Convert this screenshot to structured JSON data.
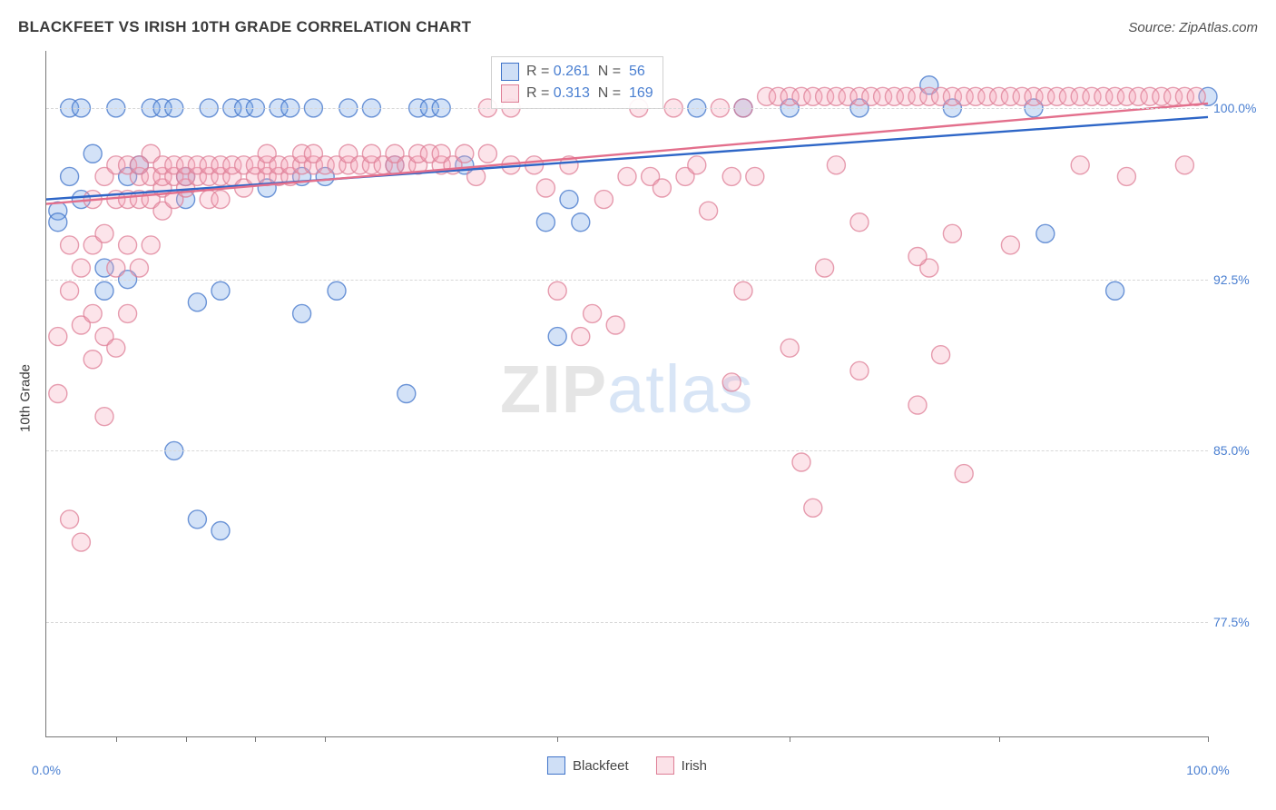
{
  "header": {
    "title": "BLACKFEET VS IRISH 10TH GRADE CORRELATION CHART",
    "source_prefix": "Source: ",
    "source": "ZipAtlas.com"
  },
  "chart": {
    "type": "scatter",
    "y_axis_label": "10th Grade",
    "background_color": "#ffffff",
    "grid_color": "#d8d8d8",
    "axis_color": "#777777",
    "marker_radius": 10,
    "marker_fill_opacity": 0.3,
    "marker_stroke_opacity": 0.75,
    "marker_stroke_width": 1.4,
    "x_range": [
      0,
      100
    ],
    "y_range": [
      72.5,
      102.5
    ],
    "y_ticks": [
      77.5,
      85.0,
      92.5,
      100.0
    ],
    "y_tick_labels": [
      "77.5%",
      "85.0%",
      "92.5%",
      "100.0%"
    ],
    "x_major_ticks": [
      0,
      100
    ],
    "x_major_labels": [
      "0.0%",
      "100.0%"
    ],
    "x_minor_ticks": [
      6,
      12,
      18,
      24,
      44,
      64,
      82,
      100
    ],
    "series": [
      {
        "name": "Blackfeet",
        "color": "#6e9fe3",
        "stroke": "#3f73c9",
        "trend_color": "#2e66c7",
        "R": "0.261",
        "N": "56",
        "trend_line": {
          "x1": 0,
          "y1": 96.0,
          "x2": 100,
          "y2": 99.6
        },
        "points": [
          [
            1,
            95.5
          ],
          [
            1,
            95
          ],
          [
            2,
            100
          ],
          [
            2,
            97
          ],
          [
            3,
            96
          ],
          [
            3,
            100
          ],
          [
            4,
            98
          ],
          [
            5,
            93
          ],
          [
            5,
            92
          ],
          [
            6,
            100
          ],
          [
            7,
            97
          ],
          [
            7,
            92.5
          ],
          [
            8,
            97.5
          ],
          [
            9,
            100
          ],
          [
            10,
            100
          ],
          [
            11,
            85
          ],
          [
            11,
            100
          ],
          [
            12,
            97
          ],
          [
            12,
            96
          ],
          [
            13,
            82
          ],
          [
            13,
            91.5
          ],
          [
            14,
            100
          ],
          [
            15,
            92
          ],
          [
            15,
            81.5
          ],
          [
            16,
            100
          ],
          [
            17,
            100
          ],
          [
            18,
            100
          ],
          [
            19,
            96.5
          ],
          [
            20,
            100
          ],
          [
            21,
            100
          ],
          [
            22,
            97
          ],
          [
            22,
            91
          ],
          [
            23,
            100
          ],
          [
            24,
            97
          ],
          [
            25,
            92
          ],
          [
            26,
            100
          ],
          [
            28,
            100
          ],
          [
            30,
            97.5
          ],
          [
            31,
            87.5
          ],
          [
            32,
            100
          ],
          [
            33,
            100
          ],
          [
            34,
            100
          ],
          [
            36,
            97.5
          ],
          [
            43,
            95
          ],
          [
            44,
            90
          ],
          [
            45,
            96
          ],
          [
            46,
            95
          ],
          [
            56,
            100
          ],
          [
            60,
            100
          ],
          [
            64,
            100
          ],
          [
            70,
            100
          ],
          [
            76,
            101
          ],
          [
            78,
            100
          ],
          [
            85,
            100
          ],
          [
            86,
            94.5
          ],
          [
            92,
            92
          ],
          [
            100,
            100.5
          ]
        ]
      },
      {
        "name": "Irish",
        "color": "#f4a7b9",
        "stroke": "#de7d95",
        "trend_color": "#e36f8c",
        "R": "0.313",
        "N": "169",
        "trend_line": {
          "x1": 0,
          "y1": 95.8,
          "x2": 100,
          "y2": 100.2
        },
        "points": [
          [
            1,
            87.5
          ],
          [
            1,
            90
          ],
          [
            2,
            82
          ],
          [
            2,
            92
          ],
          [
            2,
            94
          ],
          [
            3,
            93
          ],
          [
            3,
            90.5
          ],
          [
            3,
            81
          ],
          [
            4,
            89
          ],
          [
            4,
            91
          ],
          [
            4,
            94
          ],
          [
            4,
            96
          ],
          [
            5,
            86.5
          ],
          [
            5,
            90
          ],
          [
            5,
            94.5
          ],
          [
            5,
            97
          ],
          [
            6,
            89.5
          ],
          [
            6,
            93
          ],
          [
            6,
            96
          ],
          [
            6,
            97.5
          ],
          [
            7,
            91
          ],
          [
            7,
            94
          ],
          [
            7,
            96
          ],
          [
            7,
            97.5
          ],
          [
            8,
            93
          ],
          [
            8,
            96
          ],
          [
            8,
            97
          ],
          [
            8,
            97.5
          ],
          [
            9,
            94
          ],
          [
            9,
            96
          ],
          [
            9,
            97
          ],
          [
            9,
            98
          ],
          [
            10,
            95.5
          ],
          [
            10,
            96.5
          ],
          [
            10,
            97
          ],
          [
            10,
            97.5
          ],
          [
            11,
            96
          ],
          [
            11,
            97
          ],
          [
            11,
            97.5
          ],
          [
            12,
            96.5
          ],
          [
            12,
            97
          ],
          [
            12,
            97.5
          ],
          [
            13,
            97
          ],
          [
            13,
            97.5
          ],
          [
            14,
            96
          ],
          [
            14,
            97
          ],
          [
            14,
            97.5
          ],
          [
            15,
            96
          ],
          [
            15,
            97
          ],
          [
            15,
            97.5
          ],
          [
            16,
            97
          ],
          [
            16,
            97.5
          ],
          [
            17,
            96.5
          ],
          [
            17,
            97.5
          ],
          [
            18,
            97
          ],
          [
            18,
            97.5
          ],
          [
            19,
            97
          ],
          [
            19,
            97.5
          ],
          [
            19,
            98
          ],
          [
            20,
            97
          ],
          [
            20,
            97.5
          ],
          [
            21,
            97
          ],
          [
            21,
            97.5
          ],
          [
            22,
            97.5
          ],
          [
            22,
            98
          ],
          [
            23,
            97.5
          ],
          [
            23,
            98
          ],
          [
            24,
            97.5
          ],
          [
            25,
            97.5
          ],
          [
            26,
            97.5
          ],
          [
            26,
            98
          ],
          [
            27,
            97.5
          ],
          [
            28,
            97.5
          ],
          [
            28,
            98
          ],
          [
            29,
            97.5
          ],
          [
            30,
            97.5
          ],
          [
            30,
            98
          ],
          [
            31,
            97.5
          ],
          [
            32,
            97.5
          ],
          [
            32,
            98
          ],
          [
            33,
            98
          ],
          [
            34,
            97.5
          ],
          [
            34,
            98
          ],
          [
            35,
            97.5
          ],
          [
            36,
            98
          ],
          [
            37,
            97
          ],
          [
            38,
            98
          ],
          [
            38,
            100
          ],
          [
            40,
            97.5
          ],
          [
            40,
            100
          ],
          [
            42,
            97.5
          ],
          [
            43,
            96.5
          ],
          [
            44,
            92
          ],
          [
            45,
            97.5
          ],
          [
            46,
            90
          ],
          [
            47,
            91
          ],
          [
            48,
            96
          ],
          [
            49,
            90.5
          ],
          [
            50,
            97
          ],
          [
            51,
            100
          ],
          [
            52,
            97
          ],
          [
            53,
            96.5
          ],
          [
            54,
            100
          ],
          [
            55,
            97
          ],
          [
            56,
            97.5
          ],
          [
            57,
            95.5
          ],
          [
            58,
            100
          ],
          [
            59,
            97
          ],
          [
            59,
            88
          ],
          [
            60,
            92
          ],
          [
            60,
            100
          ],
          [
            61,
            97
          ],
          [
            62,
            100.5
          ],
          [
            63,
            100.5
          ],
          [
            64,
            89.5
          ],
          [
            64,
            100.5
          ],
          [
            65,
            84.5
          ],
          [
            65,
            100.5
          ],
          [
            66,
            82.5
          ],
          [
            66,
            100.5
          ],
          [
            67,
            93
          ],
          [
            67,
            100.5
          ],
          [
            68,
            97.5
          ],
          [
            68,
            100.5
          ],
          [
            69,
            100.5
          ],
          [
            70,
            95
          ],
          [
            70,
            88.5
          ],
          [
            70,
            100.5
          ],
          [
            71,
            100.5
          ],
          [
            72,
            100.5
          ],
          [
            73,
            100.5
          ],
          [
            74,
            100.5
          ],
          [
            75,
            87
          ],
          [
            75,
            100.5
          ],
          [
            76,
            93
          ],
          [
            76,
            100.5
          ],
          [
            77,
            89.2
          ],
          [
            77,
            100.5
          ],
          [
            78,
            94.5
          ],
          [
            78,
            100.5
          ],
          [
            79,
            100.5
          ],
          [
            80,
            100.5
          ],
          [
            81,
            100.5
          ],
          [
            82,
            100.5
          ],
          [
            83,
            94
          ],
          [
            83,
            100.5
          ],
          [
            84,
            100.5
          ],
          [
            85,
            100.5
          ],
          [
            86,
            100.5
          ],
          [
            87,
            100.5
          ],
          [
            88,
            100.5
          ],
          [
            89,
            97.5
          ],
          [
            89,
            100.5
          ],
          [
            90,
            100.5
          ],
          [
            91,
            100.5
          ],
          [
            92,
            100.5
          ],
          [
            93,
            97
          ],
          [
            93,
            100.5
          ],
          [
            94,
            100.5
          ],
          [
            95,
            100.5
          ],
          [
            96,
            100.5
          ],
          [
            97,
            100.5
          ],
          [
            98,
            97.5
          ],
          [
            98,
            100.5
          ],
          [
            99,
            100.5
          ],
          [
            79,
            84
          ],
          [
            75,
            93.5
          ]
        ]
      }
    ],
    "legend_box": {
      "R_label": "R =",
      "N_label": "N ="
    },
    "watermark": {
      "zip": "ZIP",
      "atlas": "atlas"
    },
    "bottom_legend": [
      {
        "label": "Blackfeet",
        "key": 0
      },
      {
        "label": "Irish",
        "key": 1
      }
    ]
  }
}
